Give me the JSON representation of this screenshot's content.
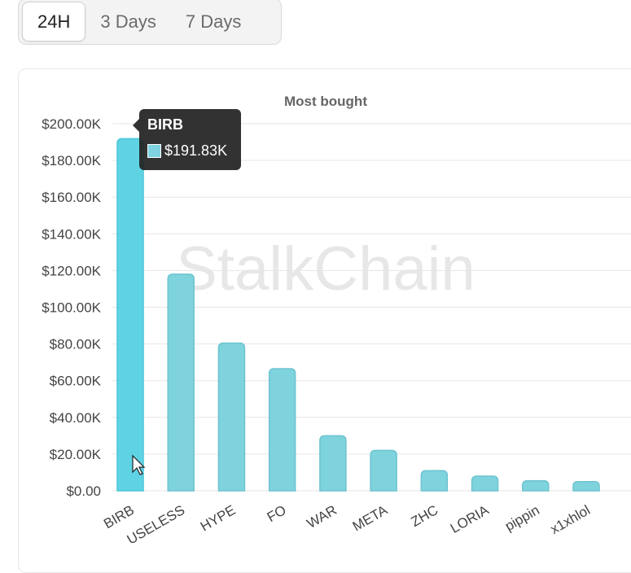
{
  "range_tabs": [
    {
      "label": "24H",
      "active": true
    },
    {
      "label": "3 Days",
      "active": false
    },
    {
      "label": "7 Days",
      "active": false
    }
  ],
  "watermark": "StalkChain",
  "tooltip": {
    "title": "BIRB",
    "value": "$191.83K"
  },
  "chart_data": {
    "type": "bar",
    "title": "Most bought",
    "categories": [
      "BIRB",
      "USELESS",
      "HYPE",
      "FO",
      "WAR",
      "META",
      "ZHC",
      "LORIA",
      "pippin",
      "x1xhlol"
    ],
    "values": [
      191830,
      118000,
      80500,
      66500,
      30000,
      22000,
      11000,
      8000,
      5500,
      5000
    ],
    "ylim": [
      0,
      200000
    ],
    "yticks": [
      0,
      20000,
      40000,
      60000,
      80000,
      100000,
      120000,
      140000,
      160000,
      180000,
      200000
    ],
    "ytick_labels": [
      "$0.00",
      "$20.00K",
      "$40.00K",
      "$60.00K",
      "$80.00K",
      "$100.00K",
      "$120.00K",
      "$140.00K",
      "$160.00K",
      "$180.00K",
      "$200.00K"
    ],
    "bar_color": "#7fd3dd",
    "highlight_color": "#5fd3e3",
    "highlight_index": 0,
    "grid": true
  }
}
